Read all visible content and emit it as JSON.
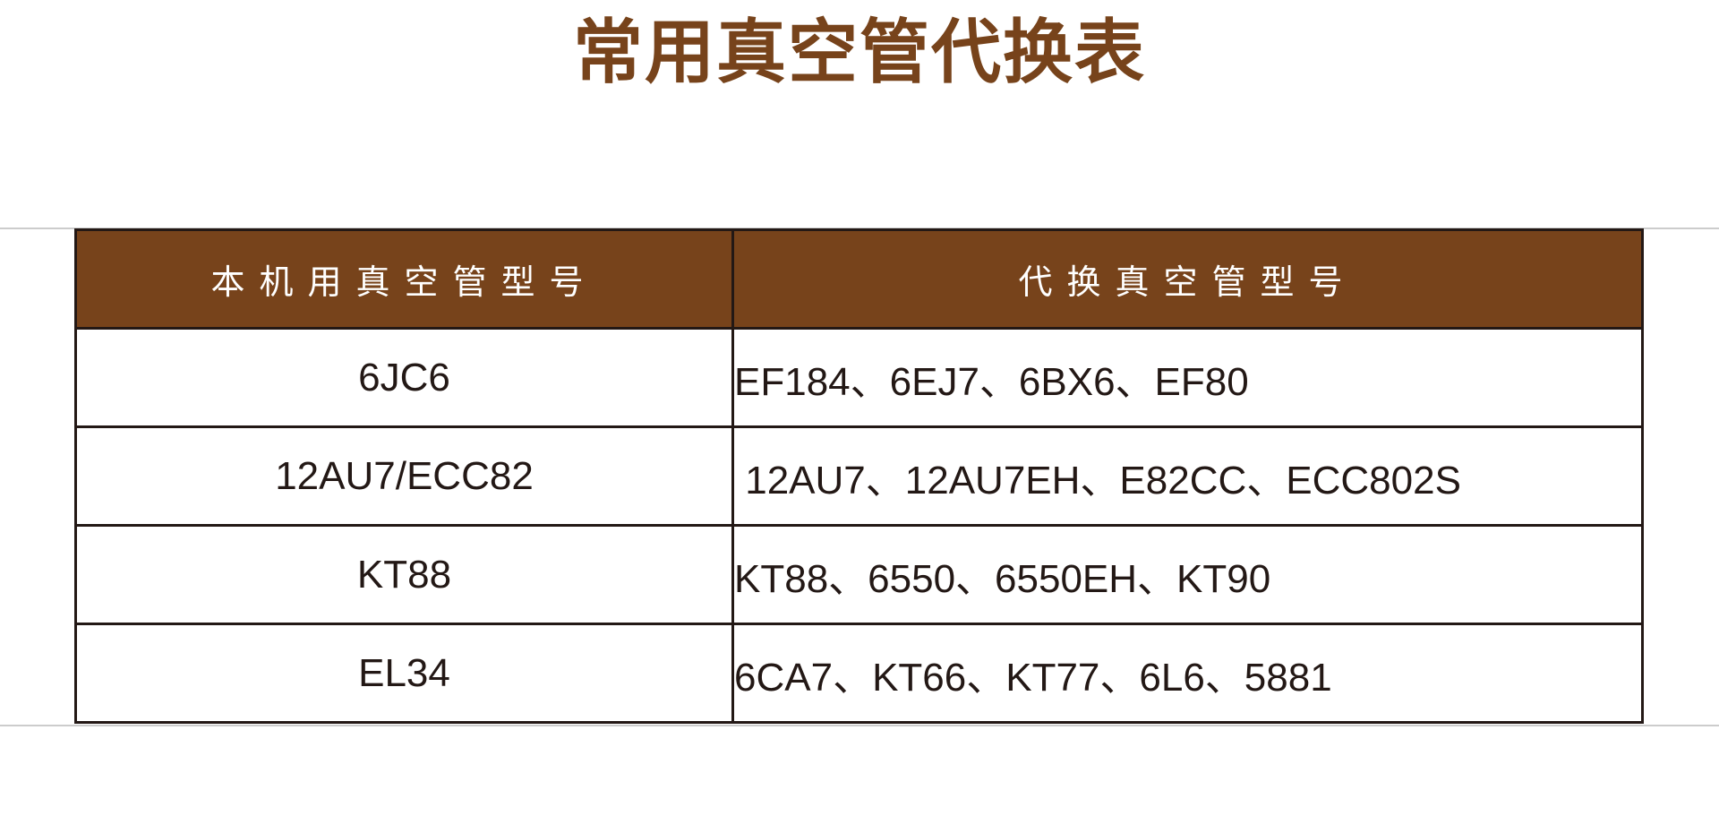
{
  "page": {
    "title": "常用真空管代换表"
  },
  "colors": {
    "accent_brown": "#77431B",
    "border_dark": "#231815",
    "header_text": "#FFFFFF",
    "cell_text": "#231815",
    "hairline_gray": "#CCCCCC",
    "background": "#FFFFFF"
  },
  "table": {
    "headers": [
      "本机用真空管型号",
      "代换真空管型号"
    ],
    "rows": [
      {
        "source": "6JC6",
        "replacements": "EF184、6EJ7、6BX6、EF80"
      },
      {
        "source": "12AU7/ECC82",
        "replacements": " 12AU7、12AU7EH、E82CC、ECC802S"
      },
      {
        "source": "KT88",
        "replacements": "KT88、6550、6550EH、KT90"
      },
      {
        "source": "EL34",
        "replacements": "6CA7、KT66、KT77、6L6、5881"
      }
    ]
  }
}
